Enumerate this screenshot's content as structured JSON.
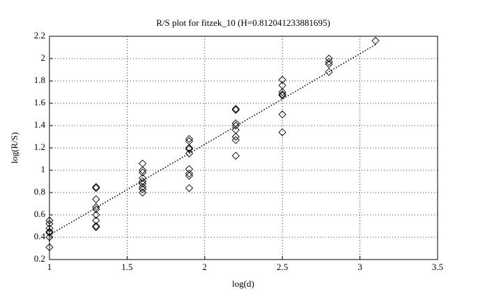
{
  "chart_data": {
    "type": "scatter",
    "title": "R/S plot for fitzek_10 (H=0.812041233881695)",
    "x_label": "log(d)",
    "y_label": "log(R/S)",
    "xlim": [
      1,
      3.5
    ],
    "xticks": [
      1,
      1.5,
      2,
      2.5,
      3,
      3.5
    ],
    "ylim": [
      0.2,
      2.2
    ],
    "yticks": [
      0.2,
      0.4,
      0.6,
      0.8,
      1,
      1.2,
      1.4,
      1.6,
      1.8,
      2,
      2.2
    ],
    "grid": true,
    "series": [
      {
        "style": "markers",
        "marker": "diamond",
        "color": "#000000",
        "x": [
          1,
          1,
          1,
          1,
          1,
          1,
          1,
          1.3,
          1.3,
          1.3,
          1.3,
          1.3,
          1.3,
          1.3,
          1.3,
          1.3,
          1.6,
          1.6,
          1.6,
          1.6,
          1.6,
          1.6,
          1.6,
          1.6,
          1.6,
          1.9,
          1.9,
          1.9,
          1.9,
          1.9,
          1.9,
          1.9,
          1.9,
          1.9,
          2.2,
          2.2,
          2.2,
          2.2,
          2.2,
          2.2,
          2.2,
          2.2,
          2.5,
          2.5,
          2.5,
          2.5,
          2.5,
          2.5,
          2.5,
          2.8,
          2.8,
          2.8,
          2.8,
          3.1
        ],
        "values": [
          0.55,
          0.52,
          0.48,
          0.45,
          0.44,
          0.4,
          0.31,
          0.85,
          0.84,
          0.74,
          0.67,
          0.65,
          0.6,
          0.55,
          0.49,
          0.5,
          1.06,
          1,
          0.98,
          0.93,
          0.9,
          0.88,
          0.85,
          0.83,
          0.8,
          1.28,
          1.26,
          1.2,
          1.19,
          1.15,
          1.01,
          0.97,
          0.95,
          0.84,
          1.55,
          1.54,
          1.42,
          1.4,
          1.36,
          1.3,
          1.27,
          1.13,
          1.81,
          1.76,
          1.7,
          1.68,
          1.67,
          1.5,
          1.34,
          2,
          1.97,
          1.95,
          1.88,
          2.16
        ]
      },
      {
        "style": "dotted-line",
        "color": "#000000",
        "x": [
          1,
          3.1
        ],
        "values": [
          0.42,
          2.125
        ]
      }
    ]
  }
}
